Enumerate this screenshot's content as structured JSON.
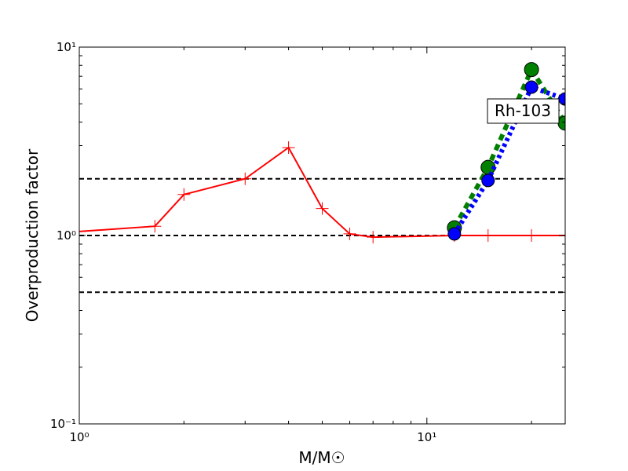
{
  "chart_data": {
    "type": "line",
    "xlabel": "M/M☉",
    "ylabel": "Overproduction factor",
    "annotation": "Rh-103",
    "log_x": true,
    "log_y": true,
    "xlim": [
      1,
      25
    ],
    "ylim": [
      0.1,
      10
    ],
    "xticks": [
      {
        "value": 1,
        "label": "10⁰"
      },
      {
        "value": 10,
        "label": "10¹"
      }
    ],
    "yticks": [
      {
        "value": 0.1,
        "label": "10⁻¹"
      },
      {
        "value": 1,
        "label": "10⁰"
      },
      {
        "value": 10,
        "label": "10¹"
      }
    ],
    "hlines": [
      2,
      1,
      0.5
    ],
    "series": [
      {
        "name": "red",
        "color": "#ff0000",
        "x": [
          1,
          1.65,
          2,
          3,
          4,
          5,
          6,
          7,
          12,
          15,
          20,
          25
        ],
        "values": [
          1.05,
          1.12,
          1.65,
          2.0,
          2.93,
          1.39,
          1.02,
          0.98,
          1.0,
          1.0,
          1.0,
          1.0
        ]
      },
      {
        "name": "green",
        "color": "#007f00",
        "x": [
          12,
          15,
          20,
          25
        ],
        "values": [
          1.1,
          2.3,
          7.6,
          3.95
        ]
      },
      {
        "name": "blue",
        "color": "#0000ff",
        "x": [
          12,
          15,
          20,
          25
        ],
        "values": [
          1.02,
          1.96,
          6.13,
          5.3
        ]
      }
    ]
  }
}
